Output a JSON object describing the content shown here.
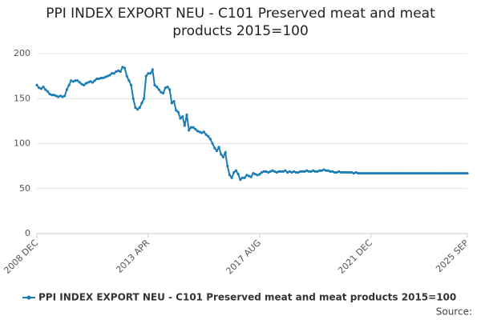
{
  "chart_data": {
    "type": "line",
    "title": "PPI INDEX EXPORT NEU - C101 Preserved meat and meat products 2015=100",
    "source": "Source:",
    "categories": [
      "2008 DEC",
      null,
      null,
      null,
      null,
      null,
      null,
      null,
      null,
      null,
      null,
      null,
      null,
      null,
      null,
      null,
      null,
      null,
      null,
      null,
      null,
      null,
      null,
      null,
      null,
      null,
      null,
      null,
      null,
      null,
      null,
      null,
      null,
      null,
      null,
      null,
      null,
      null,
      null,
      null,
      null,
      null,
      null,
      null,
      null,
      null,
      null,
      null,
      null,
      null,
      null,
      null,
      "2013 APR",
      null,
      null,
      null,
      null,
      null,
      null,
      null,
      null,
      null,
      null,
      null,
      null,
      null,
      null,
      null,
      null,
      null,
      null,
      null,
      null,
      null,
      null,
      null,
      null,
      null,
      null,
      null,
      null,
      null,
      null,
      null,
      null,
      null,
      null,
      null,
      null,
      null,
      null,
      null,
      null,
      null,
      null,
      null,
      null,
      null,
      null,
      null,
      null,
      null,
      null,
      null,
      "2017 AUG",
      null,
      null,
      null,
      null,
      null,
      null,
      null,
      null,
      null,
      null,
      null,
      null,
      null,
      null,
      null,
      null,
      null,
      null,
      null,
      null,
      null,
      null,
      null,
      null,
      null,
      null,
      null,
      null,
      null,
      null,
      null,
      null,
      null,
      null,
      null,
      null,
      null,
      null,
      null,
      null,
      null,
      null,
      null,
      null,
      null,
      null,
      null,
      null,
      null,
      null,
      null,
      "2021 DEC",
      null,
      null,
      null,
      null,
      null,
      null,
      null,
      null,
      null,
      null,
      null,
      null,
      null,
      null,
      null,
      null,
      null,
      null,
      null,
      null,
      null,
      null,
      null,
      null,
      null,
      null,
      null,
      null,
      null,
      null,
      null,
      null,
      null,
      null,
      null,
      null,
      null,
      null,
      null,
      null,
      null,
      null,
      null,
      null,
      "2025 SEP"
    ],
    "series": [
      {
        "name": "PPI INDEX EXPORT NEU - C101 Preserved meat and meat products 2015=100",
        "color": "#1a7db6",
        "values": [
          165,
          162,
          161,
          163,
          160,
          158,
          155,
          154,
          154,
          153,
          152,
          153,
          152,
          153,
          160,
          165,
          170,
          169,
          170,
          170,
          168,
          166,
          165,
          167,
          168,
          169,
          168,
          170,
          172,
          172,
          173,
          173,
          174,
          175,
          176,
          178,
          178,
          180,
          181,
          180,
          185,
          184,
          175,
          170,
          165,
          150,
          140,
          138,
          140,
          145,
          150,
          175,
          178,
          178,
          182,
          165,
          163,
          160,
          157,
          156,
          162,
          163,
          160,
          145,
          147,
          137,
          135,
          128,
          130,
          120,
          132,
          115,
          118,
          118,
          116,
          114,
          113,
          112,
          113,
          110,
          108,
          105,
          100,
          95,
          92,
          96,
          88,
          85,
          90,
          75,
          65,
          62,
          68,
          70,
          66,
          60,
          62,
          62,
          65,
          64,
          63,
          67,
          66,
          65,
          66,
          68,
          69,
          69,
          68,
          69,
          70,
          69,
          68,
          69,
          69,
          69,
          70,
          68,
          69,
          68,
          69,
          68,
          68,
          69,
          69,
          69,
          70,
          69,
          69,
          70,
          69,
          69,
          70,
          70,
          71,
          70,
          70,
          69,
          69,
          68,
          68,
          69,
          68,
          68,
          68,
          68,
          68,
          68,
          67,
          68,
          67,
          67,
          67,
          67,
          67,
          67,
          67,
          67,
          67,
          67,
          67,
          67,
          67,
          67,
          67,
          67,
          67,
          67,
          67,
          67,
          67,
          67,
          67,
          67,
          67,
          67,
          67,
          67,
          67,
          67,
          67,
          67,
          67,
          67,
          67,
          67,
          67,
          67,
          67,
          67,
          67,
          67,
          67,
          67,
          67,
          67,
          67,
          67,
          67,
          67,
          67,
          67
        ]
      }
    ],
    "ylim": [
      0,
      200
    ],
    "yticks": [
      0,
      50,
      100,
      150,
      200
    ],
    "grid": true
  }
}
